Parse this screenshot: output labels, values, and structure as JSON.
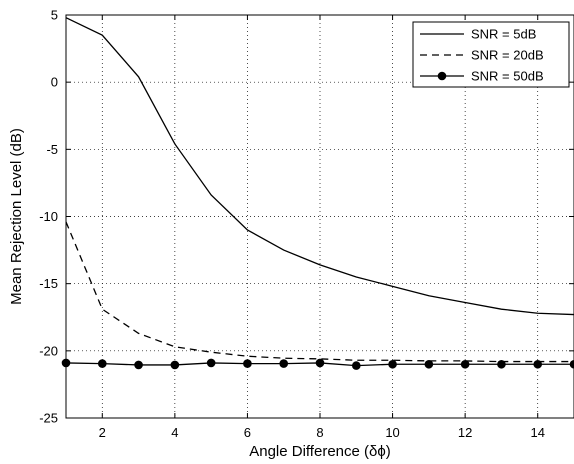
{
  "chart_data": {
    "type": "line",
    "xlabel": "Angle Difference (δϕ)",
    "ylabel": "Mean Rejection Level (dB)",
    "xlim": [
      1,
      15
    ],
    "ylim": [
      -25,
      5
    ],
    "x_ticks": [
      2,
      4,
      6,
      8,
      10,
      12,
      14
    ],
    "y_ticks": [
      5,
      0,
      -5,
      -10,
      -15,
      -20,
      -25
    ],
    "x_tick_labels": [
      "2",
      "4",
      "6",
      "8",
      "10",
      "12",
      "14"
    ],
    "y_tick_labels": [
      "5",
      "0",
      "-5",
      "-10",
      "-15",
      "-20",
      "-25"
    ],
    "grid": true,
    "grid_style": "dotted",
    "legend_position": "top-right",
    "x": [
      1,
      2,
      3,
      4,
      5,
      6,
      7,
      8,
      9,
      10,
      11,
      12,
      13,
      14,
      15
    ],
    "series": [
      {
        "name": "SNR = 5dB",
        "line_style": "solid",
        "marker": "none",
        "color": "#000000",
        "values": [
          4.8,
          3.5,
          0.4,
          -4.6,
          -8.4,
          -11.0,
          -12.5,
          -13.6,
          -14.5,
          -15.2,
          -15.9,
          -16.4,
          -16.9,
          -17.2,
          -17.3
        ]
      },
      {
        "name": "SNR = 20dB",
        "line_style": "dashed",
        "marker": "none",
        "color": "#000000",
        "values": [
          -10.4,
          -16.9,
          -18.7,
          -19.7,
          -20.1,
          -20.4,
          -20.55,
          -20.6,
          -20.7,
          -20.7,
          -20.75,
          -20.75,
          -20.8,
          -20.8,
          -20.8
        ]
      },
      {
        "name": "SNR = 50dB",
        "line_style": "solid",
        "marker": "filled-circle",
        "color": "#000000",
        "values": [
          -20.9,
          -20.95,
          -21.05,
          -21.05,
          -20.9,
          -20.95,
          -20.95,
          -20.9,
          -21.1,
          -21.0,
          -21.0,
          -21.0,
          -21.0,
          -21.0,
          -21.0
        ]
      }
    ]
  }
}
